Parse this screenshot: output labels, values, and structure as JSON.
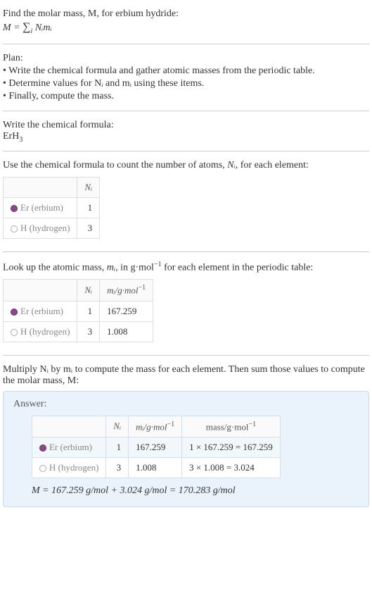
{
  "intro": {
    "line1": "Find the molar mass, M, for erbium hydride:",
    "eq_lhs": "M",
    "eq_rhs_sum": "∑",
    "eq_rhs_idx": "i",
    "eq_rhs_body": "Nᵢmᵢ"
  },
  "plan": {
    "heading": "Plan:",
    "b1": "• Write the chemical formula and gather atomic masses from the periodic table.",
    "b2": "• Determine values for Nᵢ and mᵢ using these items.",
    "b3": "• Finally, compute the mass."
  },
  "chemf": {
    "heading": "Write the chemical formula:",
    "formula_plain": "ErH",
    "formula_sub": "3"
  },
  "count": {
    "heading_pre": "Use the chemical formula to count the number of atoms, ",
    "heading_sym": "Nᵢ",
    "heading_post": ", for each element:",
    "col_n": "Nᵢ",
    "rows": [
      {
        "el_sym": "Er",
        "el_name": "(erbium)",
        "dot": "er",
        "n": "1"
      },
      {
        "el_sym": "H",
        "el_name": "(hydrogen)",
        "dot": "h",
        "n": "3"
      }
    ]
  },
  "mass": {
    "heading_pre": "Look up the atomic mass, ",
    "heading_sym": "mᵢ",
    "heading_mid": ", in g·mol",
    "heading_exp": "−1",
    "heading_post": " for each element in the periodic table:",
    "col_n": "Nᵢ",
    "col_m_pre": "mᵢ/g·mol",
    "col_m_exp": "−1",
    "rows": [
      {
        "el_sym": "Er",
        "el_name": "(erbium)",
        "dot": "er",
        "n": "1",
        "m": "167.259"
      },
      {
        "el_sym": "H",
        "el_name": "(hydrogen)",
        "dot": "h",
        "n": "3",
        "m": "1.008"
      }
    ]
  },
  "compute": {
    "heading": "Multiply Nᵢ by mᵢ to compute the mass for each element. Then sum those values to compute the molar mass, M:"
  },
  "answer": {
    "label": "Answer:",
    "col_n": "Nᵢ",
    "col_m_pre": "mᵢ/g·mol",
    "col_m_exp": "−1",
    "col_mass_pre": "mass/g·mol",
    "col_mass_exp": "−1",
    "rows": [
      {
        "el_sym": "Er",
        "el_name": "(erbium)",
        "dot": "er",
        "n": "1",
        "m": "167.259",
        "mass": "1 × 167.259 = 167.259"
      },
      {
        "el_sym": "H",
        "el_name": "(hydrogen)",
        "dot": "h",
        "n": "3",
        "m": "1.008",
        "mass": "3 × 1.008 = 3.024"
      }
    ],
    "final": "M = 167.259 g/mol + 3.024 g/mol = 170.283 g/mol"
  },
  "colors": {
    "er_dot": "#8a4a8a",
    "h_dot": "#ffffff",
    "answer_bg": "#eaf3fb",
    "answer_border": "#c5dcec",
    "table_border": "#dddddd"
  }
}
